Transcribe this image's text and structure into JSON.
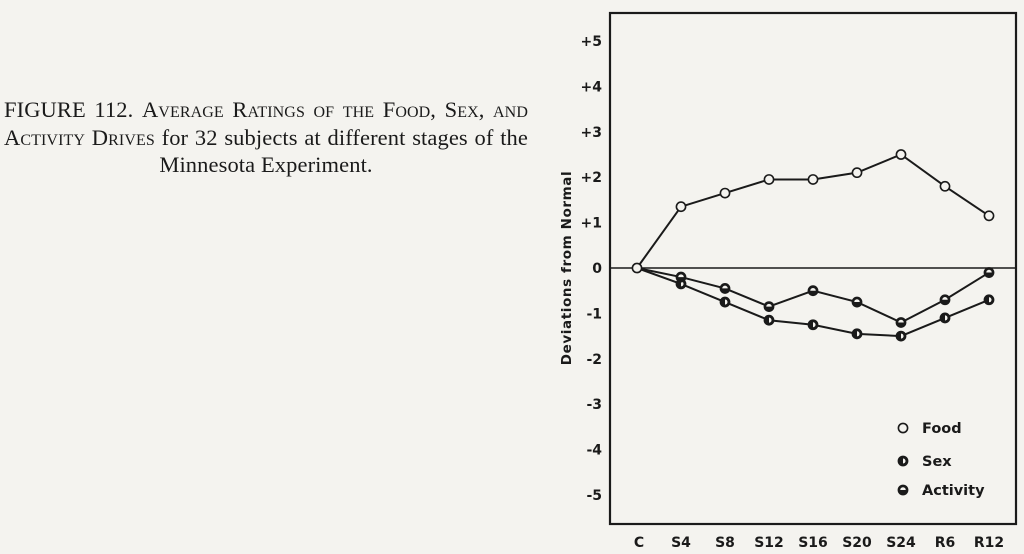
{
  "caption": {
    "figure_label": "FIGURE 112.",
    "title_smallcaps": "Average Ratings of the Food, Sex, and Activity Drives",
    "title_rest": "for 32 subjects at different stages of the Minnesota Experiment."
  },
  "chart_data": {
    "type": "line",
    "title": "",
    "xlabel": "",
    "ylabel": "Deviations from Normal",
    "categories": [
      "C",
      "S4",
      "S8",
      "S12",
      "S16",
      "S20",
      "S24",
      "R6",
      "R12"
    ],
    "ylim": [
      -5.6,
      5.6
    ],
    "yticks": [
      5,
      4,
      3,
      2,
      1,
      0,
      -1,
      -2,
      -3,
      -4,
      -5
    ],
    "ytick_labels": [
      "+5",
      "+4",
      "+3",
      "+2",
      "+1",
      "0",
      "-1",
      "-2",
      "-3",
      "-4",
      "-5"
    ],
    "series": [
      {
        "name": "Food",
        "marker": "open-circle",
        "values": [
          0,
          1.35,
          1.65,
          1.95,
          1.95,
          2.1,
          2.5,
          1.8,
          1.15
        ]
      },
      {
        "name": "Sex",
        "marker": "half-filled-vertical",
        "values": [
          0,
          -0.35,
          -0.75,
          -1.15,
          -1.25,
          -1.45,
          -1.5,
          -1.1,
          -0.7
        ]
      },
      {
        "name": "Activity",
        "marker": "half-filled-horizontal",
        "values": [
          0,
          -0.2,
          -0.45,
          -0.85,
          -0.5,
          -0.75,
          -1.2,
          -0.7,
          -0.1
        ]
      }
    ],
    "zero_line": true,
    "grid": false,
    "legend_position": "bottom-right",
    "colors": {
      "ink": "#1a1a1a",
      "paper": "#f4f3ef"
    }
  }
}
